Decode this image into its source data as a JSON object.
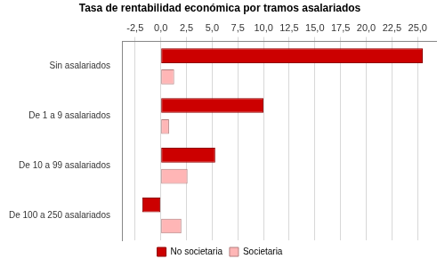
{
  "chart_data": {
    "type": "bar",
    "orientation": "horizontal",
    "title": "Tasa de rentabilidad económica por tramos asalariados",
    "categories": [
      "Sin asalariados",
      "De 1 a 9 asalariados",
      "De 10 a 99 asalariados",
      "De 100 a 250 asalariados"
    ],
    "series": [
      {
        "name": "No societaria",
        "color": "#cc0000",
        "values": [
          25.5,
          10.0,
          5.3,
          -1.8
        ]
      },
      {
        "name": "Societaria",
        "color": "#ffb6b6",
        "values": [
          1.3,
          0.8,
          2.6,
          2.0
        ]
      }
    ],
    "xlim": [
      -3.7,
      26.8
    ],
    "xticks": [
      {
        "value": -2.5,
        "label": "-2,5"
      },
      {
        "value": 0,
        "label": "0,0"
      },
      {
        "value": 2.5,
        "label": "2,5"
      },
      {
        "value": 5,
        "label": "5,0"
      },
      {
        "value": 7.5,
        "label": "7,5"
      },
      {
        "value": 10,
        "label": "10,0"
      },
      {
        "value": 12.5,
        "label": "12,5"
      },
      {
        "value": 15,
        "label": "15,0"
      },
      {
        "value": 17.5,
        "label": "17,5"
      },
      {
        "value": 20,
        "label": "20,0"
      },
      {
        "value": 22.5,
        "label": "22,5"
      },
      {
        "value": 25,
        "label": "25,0"
      }
    ],
    "grid": true,
    "legend": "bottom"
  }
}
